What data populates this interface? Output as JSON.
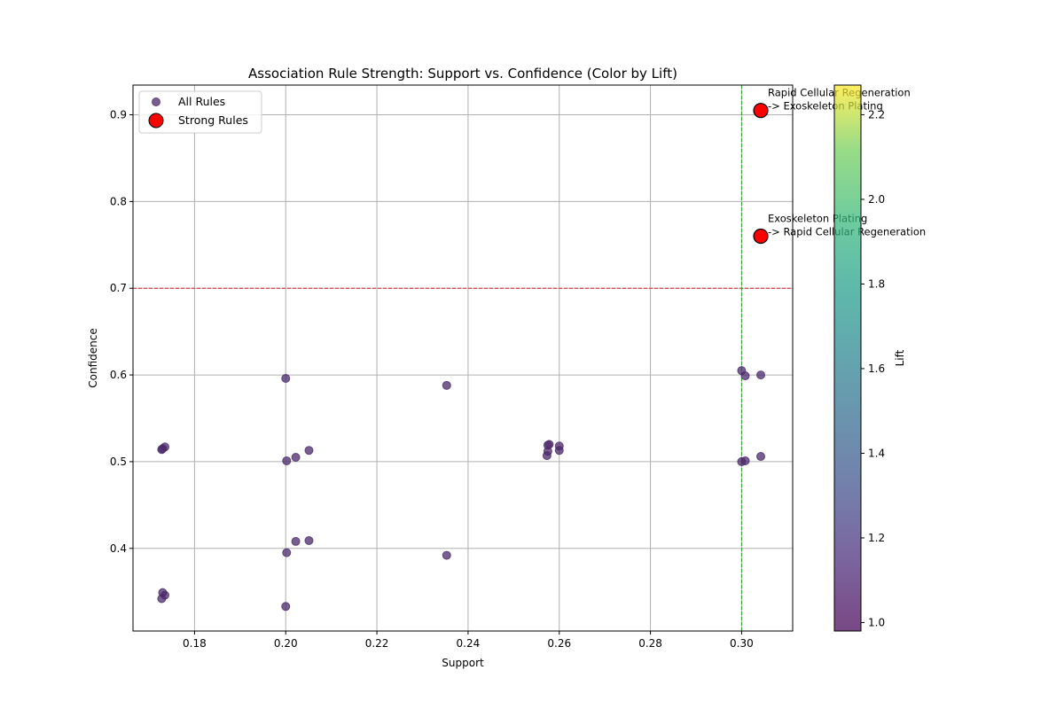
{
  "chart_data": {
    "type": "scatter",
    "title": "Association Rule Strength: Support vs. Confidence (Color by Lift)",
    "xlabel": "Support",
    "ylabel": "Confidence",
    "colorbar_label": "Lift",
    "xlim": [
      0.1665,
      0.3112
    ],
    "ylim": [
      0.3047,
      0.9343
    ],
    "xticks": [
      0.18,
      0.2,
      0.22,
      0.24,
      0.26,
      0.28,
      0.3
    ],
    "xtick_labels": [
      "0.18",
      "0.20",
      "0.22",
      "0.24",
      "0.26",
      "0.28",
      "0.30"
    ],
    "yticks": [
      0.4,
      0.5,
      0.6,
      0.7,
      0.8,
      0.9
    ],
    "ytick_labels": [
      "0.4",
      "0.5",
      "0.6",
      "0.7",
      "0.8",
      "0.9"
    ],
    "colorbar_range": [
      0.98,
      2.27
    ],
    "colorbar_ticks": [
      1.0,
      1.2,
      1.4,
      1.6,
      1.8,
      2.0,
      2.2
    ],
    "colorbar_tick_labels": [
      "1.0",
      "1.2",
      "1.4",
      "1.6",
      "1.8",
      "2.0",
      "2.2"
    ],
    "grid": true,
    "legend_position": "top-left",
    "thresholds": {
      "confidence": 0.7,
      "support": 0.3,
      "confidence_color": "#d62728",
      "support_color": "#2ca02c"
    },
    "series": [
      {
        "name": "All Rules",
        "color": "#4b2a6b",
        "points": [
          {
            "x": 0.173,
            "y": 0.515
          },
          {
            "x": 0.1735,
            "y": 0.517
          },
          {
            "x": 0.1728,
            "y": 0.514
          },
          {
            "x": 0.173,
            "y": 0.349
          },
          {
            "x": 0.1735,
            "y": 0.346
          },
          {
            "x": 0.1728,
            "y": 0.342
          },
          {
            "x": 0.2,
            "y": 0.596
          },
          {
            "x": 0.2002,
            "y": 0.501
          },
          {
            "x": 0.2002,
            "y": 0.395
          },
          {
            "x": 0.2,
            "y": 0.333
          },
          {
            "x": 0.2022,
            "y": 0.505
          },
          {
            "x": 0.2022,
            "y": 0.408
          },
          {
            "x": 0.2051,
            "y": 0.513
          },
          {
            "x": 0.2051,
            "y": 0.409
          },
          {
            "x": 0.2353,
            "y": 0.588
          },
          {
            "x": 0.2353,
            "y": 0.392
          },
          {
            "x": 0.2575,
            "y": 0.519
          },
          {
            "x": 0.2578,
            "y": 0.52
          },
          {
            "x": 0.2575,
            "y": 0.512
          },
          {
            "x": 0.2573,
            "y": 0.507
          },
          {
            "x": 0.26,
            "y": 0.518
          },
          {
            "x": 0.26,
            "y": 0.513
          },
          {
            "x": 0.3,
            "y": 0.605
          },
          {
            "x": 0.3008,
            "y": 0.599
          },
          {
            "x": 0.3042,
            "y": 0.6
          },
          {
            "x": 0.3,
            "y": 0.5
          },
          {
            "x": 0.3008,
            "y": 0.501
          },
          {
            "x": 0.3042,
            "y": 0.506
          },
          {
            "x": 0.3042,
            "y": 0.905
          },
          {
            "x": 0.3042,
            "y": 0.76
          }
        ]
      },
      {
        "name": "Strong Rules",
        "color": "#ff0000",
        "points": [
          {
            "x": 0.3042,
            "y": 0.905
          },
          {
            "x": 0.3042,
            "y": 0.76
          }
        ]
      }
    ],
    "annotations": [
      {
        "x": 0.3042,
        "y": 0.905,
        "lines": [
          "Rapid Cellular Regeneration",
          "-> Exoskeleton Plating"
        ]
      },
      {
        "x": 0.3042,
        "y": 0.76,
        "lines": [
          "Exoskeleton Plating",
          "-> Rapid Cellular Regeneration"
        ]
      }
    ]
  }
}
